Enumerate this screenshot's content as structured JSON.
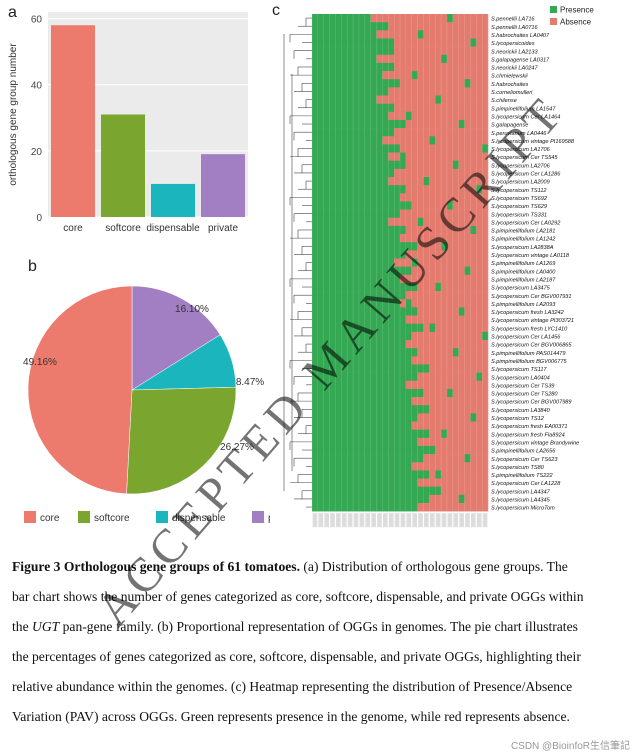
{
  "panels": {
    "a": "a",
    "b": "b",
    "c": "c"
  },
  "colors": {
    "core": "#ec7b6d",
    "softcore": "#7aa62f",
    "dispensable": "#1bb6bd",
    "private": "#a27fc2",
    "presence": "#34a853",
    "absence": "#e47b6f"
  },
  "chart_data": [
    {
      "type": "bar",
      "categories": [
        "core",
        "softcore",
        "dispensable",
        "private"
      ],
      "values": [
        58,
        31,
        10,
        19
      ],
      "ylabel": "orthologous gene group number",
      "yticks": [
        0,
        20,
        40,
        60
      ],
      "ylim": [
        0,
        62
      ],
      "grid": true
    },
    {
      "type": "pie",
      "categories": [
        "core",
        "softcore",
        "dispensable",
        "private"
      ],
      "values": [
        49.16,
        26.27,
        8.47,
        16.1
      ],
      "labels": [
        "49.16%",
        "26.27%",
        "8.47%",
        "16.10%"
      ],
      "legend": [
        "core",
        "softcore",
        "dispensable",
        "private"
      ],
      "legend_placement": "bottom"
    },
    {
      "type": "heatmap",
      "legend": [
        "Presence",
        "Absence"
      ],
      "legend_placement": "top-right",
      "rows": [
        "S.pennellii LA716",
        "S.pennellii LA0716",
        "S.habrochaites LA0407",
        "S.lycopersicoides",
        "S.neorickii LA2133",
        "S.galapagense LA0317",
        "S.neorickii LA0247",
        "S.chmielewskii",
        "S.habrochaites",
        "S.corneliomulleri",
        "S.chilense",
        "S.pimpinellifolium LA1547",
        "S.lycopersicum Cer LA1464",
        "S.galapagense",
        "S.peruvianum LA0446",
        "S.lycopersicum vintage PI169588",
        "S.lycopersicum LA1706",
        "S.lycopersicum Cer TS545",
        "S.lycopersicum LA2706",
        "S.lycopersicum Cer LA1286",
        "S.lycopersicum LA2009",
        "S.lycopersicum TS112",
        "S.lycopersicum TS692",
        "S.lycopersicum TS629",
        "S.lycopersicum TS331",
        "S.lycopersicum Cer LA0292",
        "S.pimpinellifolium LA2181",
        "S.pimpinellifolium LA1242",
        "S.lycopersicum LA2838A",
        "S.lycopersicum vintage LA0118",
        "S.pimpinellifolium LA1269",
        "S.pimpinellifolium LA0400",
        "S.pimpinellifolium LA2187",
        "S.lycopersicum LA3475",
        "S.lycopersicum Cer BGV007931",
        "S.pimpinellifolium LA2093",
        "S.lycopersicum fresh LA3242",
        "S.lycopersicum vintage PI303721",
        "S.lycopersicum fresh LYC1410",
        "S.lycopersicum Cer LA1456",
        "S.lycopersicum Cer BGV006865",
        "S.pimpinellifolium PAS014479",
        "S.pimpinellifolium BGV006775",
        "S.lycopersicum TS117",
        "S.lycopersicum LA0404",
        "S.lycopersicum Cer TS39",
        "S.lycopersicum Cer TS280",
        "S.lycopersicum Cer BGV007989",
        "S.lycopersicum LA3840",
        "S.lycopersicum TS12",
        "S.lycopersicum fresh EA00371",
        "S.lycopersicum fresh Fla8924",
        "S.lycopersicum vintage Brandywine",
        "S.pimpinellifolium LA2656",
        "S.lycopersicum Cer TS623",
        "S.lycopersicum TS80",
        "S.pimpinellifolium TS222",
        "S.lycopersicum Cer LA1228",
        "S.lycopersicum LA4347",
        "S.lycopersicum LA4345",
        "S.lycopersicum MicroTom"
      ],
      "values": "presence/absence matrix (green = presence, red = absence)"
    }
  ],
  "caption": {
    "label": "Figure 3 Orthologous gene groups of 61 tomatoes.",
    "part1": " (a) Distribution of orthologous gene groups. The bar chart shows the number of genes categorized as core, softcore, dispensable, and private OGGs within the ",
    "gene": "UGT",
    "part2": " pan-gene family. (b) Proportional representation of OGGs in genomes. The pie chart illustrates the percentages of genes categorized as core, softcore, dispensable, and private OGGs, highlighting their relative abundance within the genomes. (c) Heatmap representing the distribution of Presence/Absence Variation (PAV) across OGGs. Green represents presence in the genome, while red represents absence."
  },
  "watermark": "ACCEPTED MANUSCRIPT",
  "footer": "CSDN @BioinfoR生信筆記"
}
